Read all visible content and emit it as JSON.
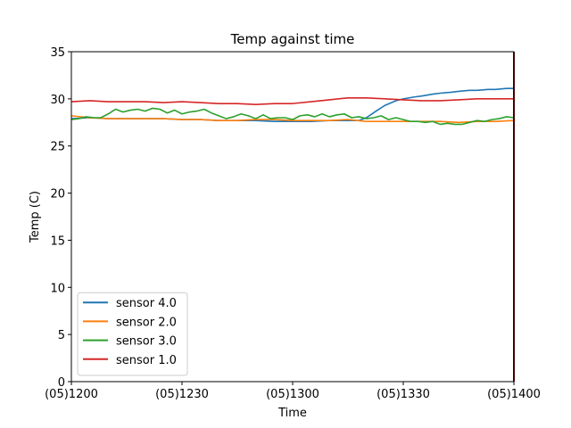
{
  "chart_data": {
    "type": "line",
    "title": "Temp against  time",
    "xlabel": "Time",
    "ylabel": "Temp (C)",
    "xlim": [
      0,
      120
    ],
    "ylim": [
      0,
      35
    ],
    "x_ticks": [
      {
        "value": 0,
        "label": "(05)1200"
      },
      {
        "value": 30,
        "label": "(05)1230"
      },
      {
        "value": 60,
        "label": "(05)1300"
      },
      {
        "value": 90,
        "label": "(05)1330"
      },
      {
        "value": 120,
        "label": "(05)1400"
      }
    ],
    "y_ticks": [
      {
        "value": 0,
        "label": "0"
      },
      {
        "value": 5,
        "label": "5"
      },
      {
        "value": 10,
        "label": "10"
      },
      {
        "value": 15,
        "label": "15"
      },
      {
        "value": 20,
        "label": "20"
      },
      {
        "value": 25,
        "label": "25"
      },
      {
        "value": 30,
        "label": "30"
      },
      {
        "value": 35,
        "label": "35"
      }
    ],
    "x_unit": "minutes after (05)1200",
    "legend_position": "lower-left",
    "vertical_marker": {
      "x": 120,
      "color": "#8b0000"
    },
    "series": [
      {
        "name": "sensor 4.0",
        "color": "#1f77b4",
        "x": [
          0,
          5,
          10,
          15,
          20,
          25,
          30,
          35,
          40,
          45,
          50,
          55,
          60,
          65,
          70,
          75,
          78,
          80,
          83,
          85,
          88,
          90,
          93,
          95,
          98,
          100,
          103,
          105,
          108,
          110,
          113,
          115,
          118,
          120
        ],
        "y": [
          27.9,
          28.0,
          27.9,
          27.9,
          27.9,
          27.9,
          27.8,
          27.8,
          27.7,
          27.7,
          27.7,
          27.6,
          27.6,
          27.6,
          27.7,
          27.7,
          27.7,
          28.0,
          28.8,
          29.3,
          29.8,
          30.0,
          30.2,
          30.3,
          30.5,
          30.6,
          30.7,
          30.8,
          30.9,
          30.9,
          31.0,
          31.0,
          31.1,
          31.1
        ]
      },
      {
        "name": "sensor 2.0",
        "color": "#ff7f0e",
        "x": [
          0,
          5,
          10,
          15,
          20,
          25,
          30,
          35,
          40,
          45,
          50,
          55,
          60,
          65,
          70,
          75,
          80,
          85,
          90,
          95,
          100,
          105,
          110,
          115,
          120
        ],
        "y": [
          28.2,
          28.0,
          27.9,
          27.9,
          27.9,
          27.9,
          27.8,
          27.8,
          27.7,
          27.7,
          27.8,
          27.8,
          27.7,
          27.7,
          27.7,
          27.8,
          27.6,
          27.6,
          27.6,
          27.6,
          27.6,
          27.5,
          27.6,
          27.6,
          27.7
        ]
      },
      {
        "name": "sensor 3.0",
        "color": "#2ca02c",
        "x": [
          0,
          2,
          4,
          6,
          8,
          10,
          12,
          14,
          16,
          18,
          20,
          22,
          24,
          26,
          28,
          30,
          32,
          34,
          36,
          38,
          40,
          42,
          44,
          46,
          48,
          50,
          52,
          54,
          56,
          58,
          60,
          62,
          64,
          66,
          68,
          70,
          72,
          74,
          76,
          78,
          80,
          82,
          84,
          86,
          88,
          90,
          92,
          94,
          96,
          98,
          100,
          102,
          104,
          106,
          108,
          110,
          112,
          114,
          116,
          118,
          120
        ],
        "y": [
          27.8,
          27.9,
          28.1,
          28.0,
          28.0,
          28.4,
          28.9,
          28.6,
          28.8,
          28.9,
          28.7,
          29.0,
          28.9,
          28.5,
          28.8,
          28.4,
          28.6,
          28.7,
          28.9,
          28.5,
          28.2,
          27.9,
          28.1,
          28.4,
          28.2,
          27.9,
          28.3,
          27.9,
          28.0,
          28.0,
          27.8,
          28.2,
          28.3,
          28.1,
          28.4,
          28.1,
          28.3,
          28.4,
          28.0,
          28.1,
          27.9,
          28.0,
          28.2,
          27.8,
          28.0,
          27.8,
          27.6,
          27.6,
          27.5,
          27.6,
          27.3,
          27.4,
          27.3,
          27.3,
          27.5,
          27.7,
          27.6,
          27.8,
          27.9,
          28.1,
          28.0
        ]
      },
      {
        "name": "sensor 1.0",
        "color": "#d62728",
        "x": [
          0,
          5,
          10,
          15,
          20,
          25,
          30,
          35,
          40,
          45,
          50,
          55,
          60,
          65,
          70,
          75,
          80,
          85,
          90,
          95,
          100,
          105,
          110,
          115,
          120
        ],
        "y": [
          29.7,
          29.8,
          29.7,
          29.7,
          29.7,
          29.6,
          29.7,
          29.6,
          29.5,
          29.5,
          29.4,
          29.5,
          29.5,
          29.7,
          29.9,
          30.1,
          30.1,
          30.0,
          29.9,
          29.8,
          29.8,
          29.9,
          30.0,
          30.0,
          30.0
        ]
      }
    ]
  }
}
